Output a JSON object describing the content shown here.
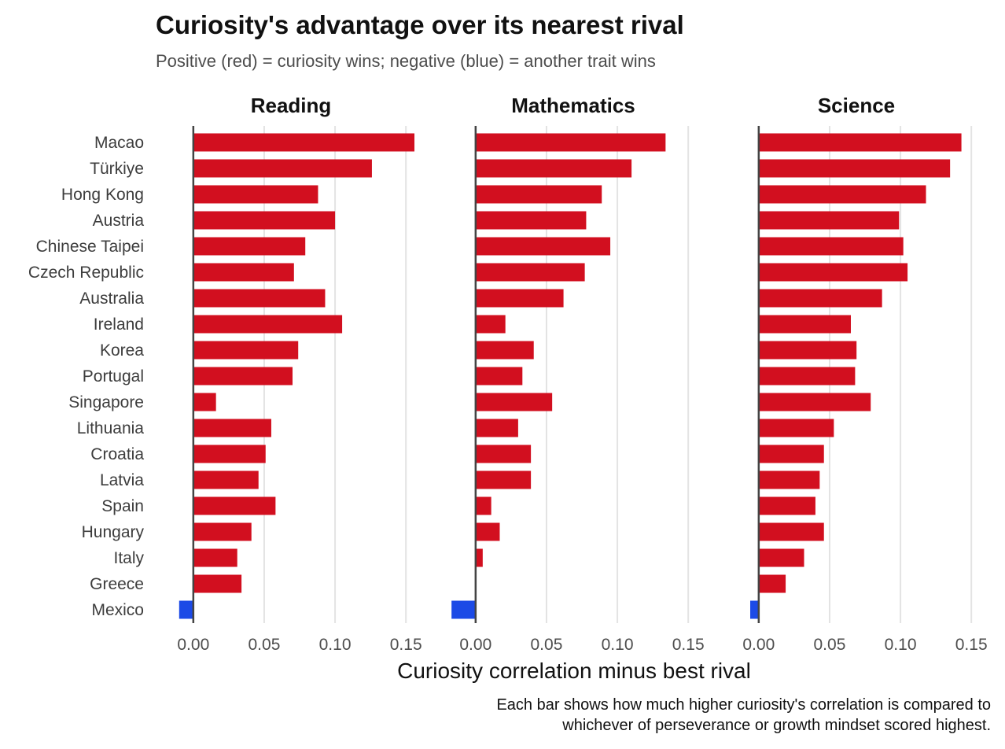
{
  "chart_data": {
    "type": "bar",
    "orientation": "horizontal",
    "title": "Curiosity's advantage over its nearest rival",
    "subtitle": "Positive (red) = curiosity wins; negative (blue) = another trait wins",
    "xlabel": "Curiosity correlation minus best rival",
    "caption": [
      "Each bar shows how much higher curiosity's correlation is compared to",
      "whichever of perseverance or growth mindset scored highest."
    ],
    "categories": [
      "Macao",
      "Türkiye",
      "Hong Kong",
      "Austria",
      "Chinese Taipei",
      "Czech Republic",
      "Australia",
      "Ireland",
      "Korea",
      "Portugal",
      "Singapore",
      "Lithuania",
      "Croatia",
      "Latvia",
      "Spain",
      "Hungary",
      "Italy",
      "Greece",
      "Mexico"
    ],
    "xlim": [
      -0.011,
      0.151
    ],
    "xticks": [
      0.0,
      0.05,
      0.1,
      0.15
    ],
    "xtick_labels": [
      "0.00",
      "0.05",
      "0.10",
      "0.15"
    ],
    "grid": true,
    "colors": {
      "positive": "#d20f1f",
      "negative": "#1c4ae6",
      "zero_line": "#444444",
      "grid": "#e3e3e3"
    },
    "facets": [
      {
        "name": "Reading",
        "values": [
          0.156,
          0.126,
          0.088,
          0.1,
          0.079,
          0.071,
          0.093,
          0.105,
          0.074,
          0.07,
          0.016,
          0.055,
          0.051,
          0.046,
          0.058,
          0.041,
          0.031,
          0.034,
          -0.01
        ]
      },
      {
        "name": "Mathematics",
        "values": [
          0.134,
          0.11,
          0.089,
          0.078,
          0.095,
          0.077,
          0.062,
          0.021,
          0.041,
          0.033,
          0.054,
          0.03,
          0.039,
          0.039,
          0.011,
          0.017,
          0.005,
          0.0,
          -0.017
        ]
      },
      {
        "name": "Science",
        "values": [
          0.143,
          0.135,
          0.118,
          0.099,
          0.102,
          0.105,
          0.087,
          0.065,
          0.069,
          0.068,
          0.079,
          0.053,
          0.046,
          0.043,
          0.04,
          0.046,
          0.032,
          0.019,
          -0.006
        ]
      }
    ]
  }
}
